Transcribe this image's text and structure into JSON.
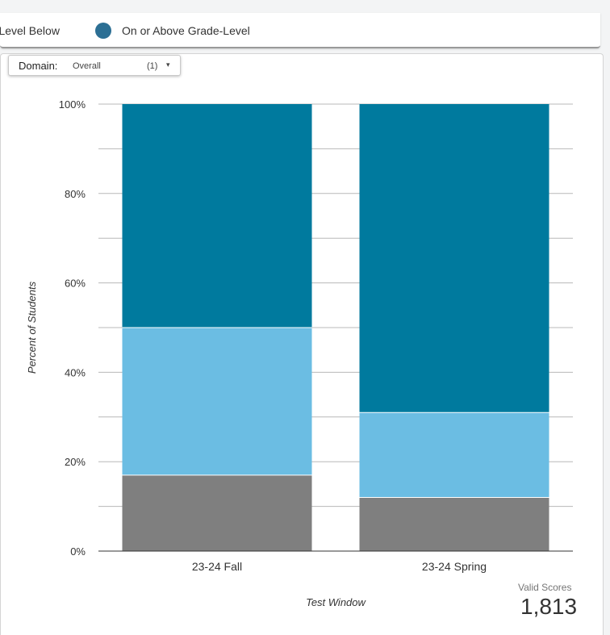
{
  "legend": {
    "left_text": "e-Level Below",
    "right_text": "On or Above Grade-Level",
    "dot_color": "#2c6f94"
  },
  "filter": {
    "label": "Domain:",
    "value": "Overall",
    "count": "(1)",
    "caret": "▾"
  },
  "valid_scores": {
    "label": "Valid Scores",
    "value": "1,813"
  },
  "chart_data": {
    "type": "bar",
    "stacked": true,
    "categories": [
      "23-24 Fall",
      "23-24 Spring"
    ],
    "series": [
      {
        "name": "",
        "color": "#7f7f7f",
        "values": [
          17,
          12
        ]
      },
      {
        "name": "",
        "color": "#6bbde3",
        "values": [
          33,
          19
        ]
      },
      {
        "name": "On or Above Grade-Level",
        "color": "#007a9e",
        "values": [
          50,
          69
        ]
      }
    ],
    "xlabel": "Test Window",
    "ylabel": "Percent of Students",
    "ylim": [
      0,
      100
    ],
    "yticks": [
      {
        "value": 0,
        "label": "0%"
      },
      {
        "value": 20,
        "label": "20%"
      },
      {
        "value": 40,
        "label": "40%"
      },
      {
        "value": 60,
        "label": "60%"
      },
      {
        "value": 80,
        "label": "80%"
      },
      {
        "value": 100,
        "label": "100%"
      }
    ],
    "minor_gridlines": [
      10,
      30,
      50,
      70,
      90
    ],
    "grid": true
  }
}
